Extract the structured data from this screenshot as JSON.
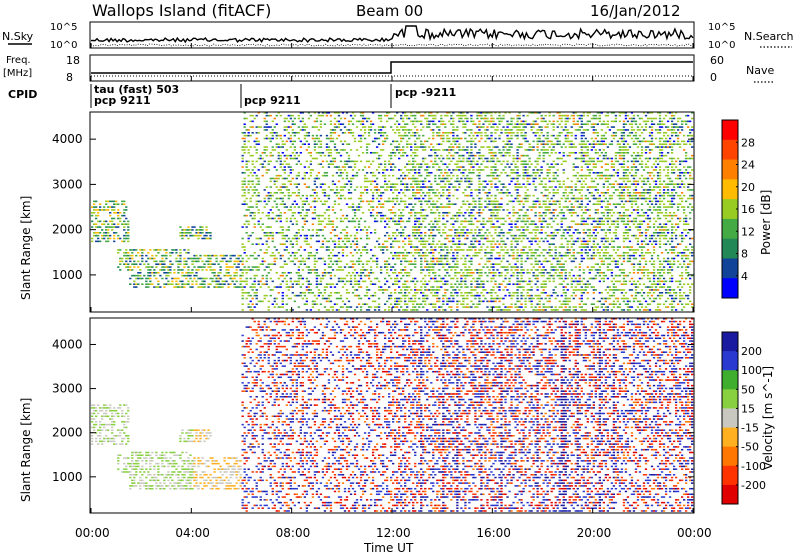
{
  "header": {
    "station": "Wallops Island (fitACF)",
    "beam": "Beam 00",
    "date": "16/Jan/2012"
  },
  "top_panels": {
    "nsky_label": "N.Sky",
    "nsearch_label": "N.Search",
    "freq_label_line1": "Freq.",
    "freq_label_line2": "[MHz]",
    "nave_label": "Nave",
    "cpid_label": "CPID",
    "noise_ticks_left": [
      "10^5",
      "10^0"
    ],
    "noise_ticks_right": [
      "10^5",
      "10^0"
    ],
    "freq_ticks": [
      "18",
      "8"
    ],
    "nave_ticks": [
      "60",
      "0"
    ],
    "cpid_segments": [
      {
        "line1": "tau (fast) 503",
        "line2": "pcp 9211",
        "start_hour": 0
      },
      {
        "line1": "",
        "line2": "pcp 9211",
        "start_hour": 6
      },
      {
        "line1": "pcp -9211",
        "line2": "",
        "start_hour": 12
      }
    ]
  },
  "time_axis": {
    "label": "Time UT",
    "ticks": [
      "00:00",
      "04:00",
      "08:00",
      "12:00",
      "16:00",
      "20:00",
      "00:00"
    ]
  },
  "power_panel": {
    "ylabel": "Slant Range [km]",
    "yticks": [
      "4000",
      "3000",
      "2000",
      "1000"
    ],
    "colorbar_label": "Power [dB]",
    "colorbar_ticks": [
      "28",
      "24",
      "20",
      "16",
      "12",
      "8",
      "4"
    ],
    "colors": [
      "#ff0000",
      "#ff4400",
      "#ff8000",
      "#ffbb00",
      "#99cc22",
      "#44aa44",
      "#228855",
      "#114499",
      "#0000ff"
    ]
  },
  "velocity_panel": {
    "ylabel": "Slant Range [km]",
    "yticks": [
      "4000",
      "3000",
      "2000",
      "1000"
    ],
    "colorbar_label": "Velocity [m s^-1]",
    "colorbar_ticks": [
      "200",
      "100",
      "50",
      "15",
      "-15",
      "-50",
      "-100",
      "-200"
    ],
    "colors": [
      "#1a1aa0",
      "#2a3ad0",
      "#3fae2f",
      "#88d040",
      "#c8c8c0",
      "#ffb020",
      "#ff7700",
      "#ff3300",
      "#e00000"
    ]
  },
  "chart_data": [
    {
      "type": "heatmap",
      "title": "Power",
      "xlabel": "Time UT",
      "ylabel": "Slant Range [km]",
      "xlim_hours": [
        0,
        24
      ],
      "ylim_km": [
        180,
        4600
      ],
      "colorbar": {
        "label": "Power [dB]",
        "range": [
          0,
          32
        ],
        "ticks": [
          4,
          8,
          12,
          16,
          20,
          24,
          28
        ]
      },
      "regions": [
        {
          "hours": [
            0.0,
            6.0
          ],
          "description_range_km": [
            600,
            2700
          ],
          "dominant_power_db": [
            4,
            20
          ]
        },
        {
          "hours": [
            6.0,
            24.0
          ],
          "description_range_km": [
            180,
            4600
          ],
          "dominant_power_db": [
            4,
            16
          ]
        }
      ]
    },
    {
      "type": "heatmap",
      "title": "Velocity",
      "xlabel": "Time UT",
      "ylabel": "Slant Range [km]",
      "xlim_hours": [
        0,
        24
      ],
      "ylim_km": [
        180,
        4600
      ],
      "colorbar": {
        "label": "Velocity [m s^-1]",
        "range": [
          -250,
          250
        ],
        "ticks": [
          -200,
          -100,
          -50,
          -15,
          15,
          50,
          100,
          200
        ]
      },
      "regions": [
        {
          "hours": [
            0.0,
            6.0
          ],
          "description_range_km": [
            600,
            2700
          ],
          "dominant_velocity": [
            -50,
            50
          ]
        },
        {
          "hours": [
            6.0,
            24.0
          ],
          "description_range_km": [
            180,
            4600
          ],
          "dominant_velocity": [
            -200,
            200
          ]
        }
      ]
    }
  ]
}
